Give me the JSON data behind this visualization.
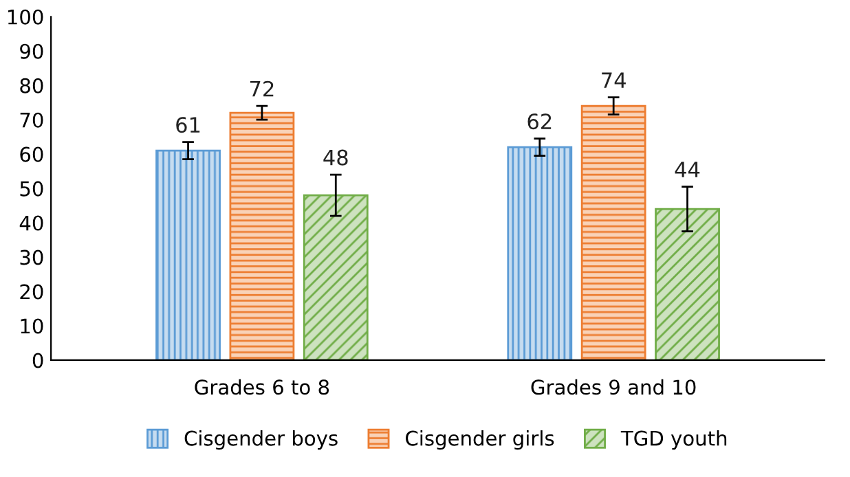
{
  "chart_data": {
    "type": "bar",
    "categories": [
      "Grades 6 to 8",
      "Grades 9 and 10"
    ],
    "series": [
      {
        "name": "Cisgender boys",
        "color": "#5b9bd5",
        "values": [
          61,
          62
        ],
        "errors": [
          2.5,
          2.5
        ]
      },
      {
        "name": "Cisgender girls",
        "color": "#ed7d31",
        "values": [
          72,
          74
        ],
        "errors": [
          2,
          2.5
        ]
      },
      {
        "name": "TGD youth",
        "color": "#70ad47",
        "values": [
          48,
          44
        ],
        "errors": [
          6,
          6.5
        ]
      }
    ],
    "ylim": [
      0,
      100
    ],
    "yticks": [
      0,
      10,
      20,
      30,
      40,
      50,
      60,
      70,
      80,
      90,
      100
    ],
    "grid": false,
    "legend": "bottom",
    "data_labels": true
  }
}
